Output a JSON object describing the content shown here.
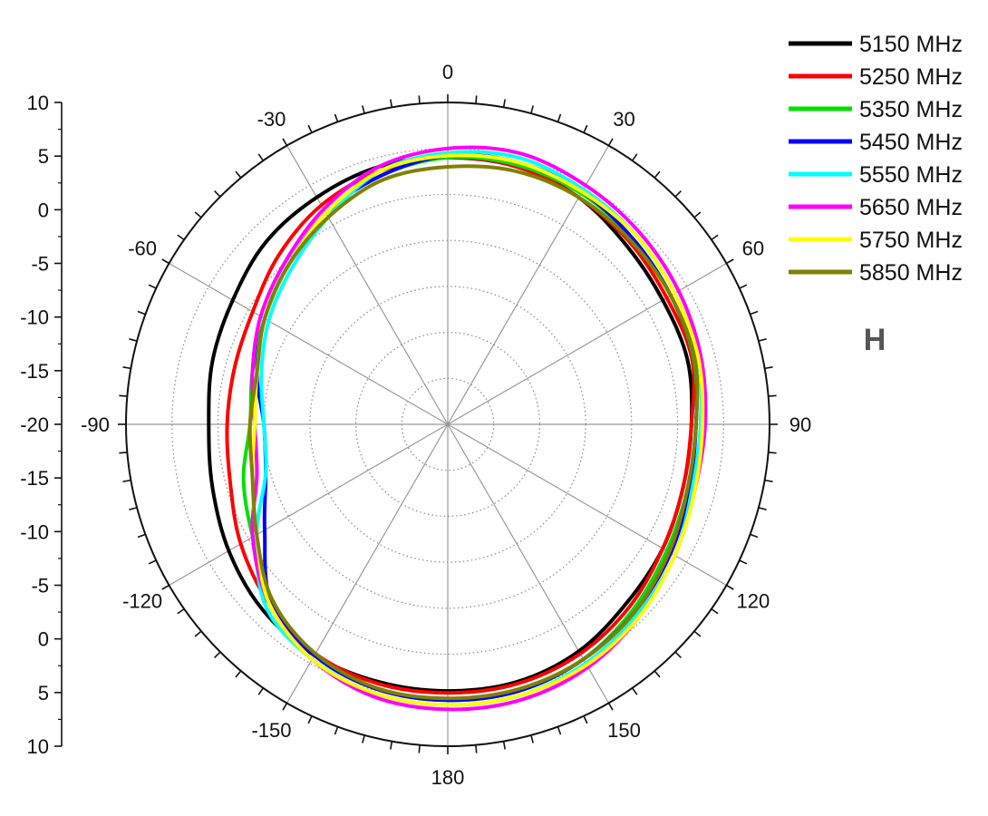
{
  "chart_data": {
    "type": "line",
    "polar": true,
    "title": "",
    "polarization_label": "H",
    "angle_unit": "degrees",
    "angle_ticks": [
      0,
      30,
      60,
      90,
      120,
      150,
      180,
      -150,
      -120,
      -90,
      -60,
      -30
    ],
    "angle_tick_labels": [
      "0",
      "30",
      "60",
      "90",
      "120",
      "150",
      "180",
      "-150",
      "-120",
      "-90",
      "-60",
      "-30"
    ],
    "radial_range": [
      -25,
      10
    ],
    "radial_ticks": [
      10,
      5,
      0,
      -5,
      -10,
      -15,
      -20,
      -15,
      -10,
      -5,
      0,
      5,
      10
    ],
    "grid": true,
    "legend_position": "top-right",
    "series_angles": [
      0,
      15,
      30,
      45,
      60,
      75,
      90,
      105,
      120,
      135,
      150,
      165,
      180,
      -165,
      -150,
      -135,
      -120,
      -105,
      -90,
      -75,
      -60,
      -45,
      -30,
      -15
    ],
    "series": [
      {
        "name": "5150 MHz",
        "color": "#000000",
        "values": [
          4,
          4,
          3.5,
          2.5,
          2,
          2,
          1.5,
          1.5,
          2,
          2.5,
          3.5,
          4,
          4,
          4,
          4,
          3.5,
          2.5,
          1.5,
          1,
          1.5,
          2,
          3,
          3.5,
          4
        ]
      },
      {
        "name": "5250 MHz",
        "color": "#ff0000",
        "values": [
          4,
          4,
          3.5,
          3,
          2.5,
          2.5,
          1.5,
          1.5,
          2,
          3,
          3.8,
          4.2,
          4.2,
          4.2,
          3.8,
          2.5,
          1,
          -0.5,
          -1,
          -1,
          -0.5,
          1,
          2.5,
          3.5
        ]
      },
      {
        "name": "5350 MHz",
        "color": "#00e000",
        "values": [
          4,
          4.2,
          4,
          3.5,
          3,
          2.7,
          2,
          2,
          2.5,
          3.5,
          4.5,
          5,
          5,
          4.8,
          4,
          2,
          -0.5,
          -2,
          -3.5,
          -3,
          -2,
          -0.5,
          1.5,
          3
        ]
      },
      {
        "name": "5450 MHz",
        "color": "#0000ff",
        "values": [
          4.2,
          4.5,
          4.2,
          3.5,
          3,
          2.8,
          2,
          2.2,
          3,
          3.8,
          4.5,
          5,
          5,
          4.8,
          4,
          2.2,
          -2,
          -4.5,
          -5,
          -3.5,
          -2,
          -0.5,
          1.5,
          3
        ]
      },
      {
        "name": "5550 MHz",
        "color": "#00ffff",
        "values": [
          4.5,
          5,
          4.5,
          4,
          3.5,
          3.2,
          2.5,
          2.5,
          3.5,
          4.2,
          5,
          5.5,
          5.5,
          5.3,
          4.5,
          3,
          -1,
          -4.5,
          -5,
          -4,
          -2.5,
          -1,
          1,
          3.5
        ]
      },
      {
        "name": "5650 MHz",
        "color": "#ff00ff",
        "values": [
          5,
          5.5,
          5,
          4.5,
          4,
          3.5,
          3,
          2.8,
          3.5,
          4.5,
          5.5,
          6,
          6,
          5.7,
          4.5,
          2.5,
          -0.5,
          -3.5,
          -4,
          -3,
          -1.5,
          0,
          2,
          4
        ]
      },
      {
        "name": "5750 MHz",
        "color": "#ffff00",
        "values": [
          4.2,
          4.5,
          4.2,
          4,
          3.5,
          3.2,
          2.7,
          2.8,
          3.5,
          4.5,
          5.2,
          5.5,
          5.5,
          5.3,
          4.5,
          2.5,
          -1,
          -3,
          -4,
          -3.5,
          -2,
          -0.5,
          1.5,
          3.5
        ]
      },
      {
        "name": "5850 MHz",
        "color": "#808000",
        "values": [
          3,
          3.5,
          3.5,
          3.2,
          3,
          2.8,
          2,
          2,
          2.8,
          3.8,
          4.5,
          4.8,
          4.8,
          4.7,
          3.8,
          2,
          -1,
          -3,
          -3.5,
          -3.5,
          -2,
          -0.5,
          1,
          2.5
        ]
      }
    ]
  }
}
